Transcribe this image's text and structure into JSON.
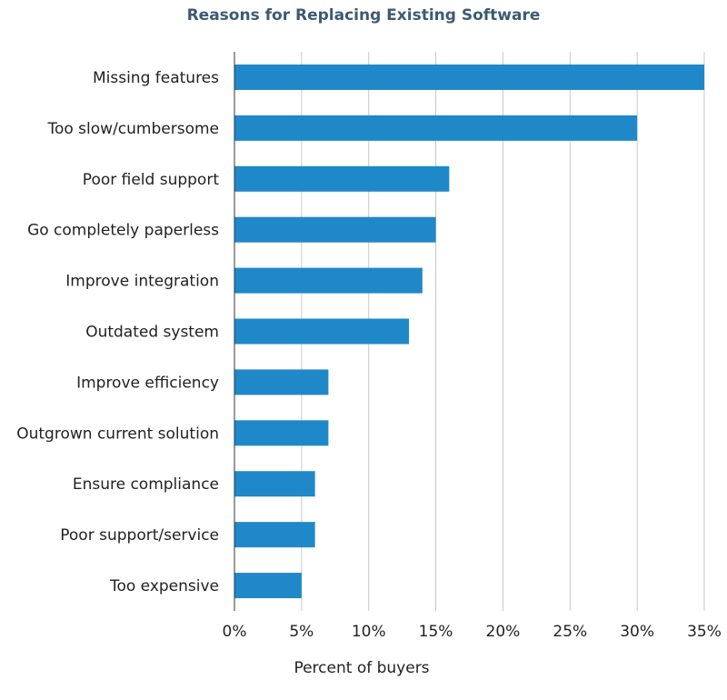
{
  "chart_data": {
    "type": "bar",
    "orientation": "horizontal",
    "title": "Reasons for Replacing Existing Software",
    "xlabel": "Percent of buyers",
    "ylabel": "",
    "categories": [
      "Missing features",
      "Too slow/cumbersome",
      "Poor field support",
      "Go completely paperless",
      "Improve integration",
      "Outdated system",
      "Improve efficiency",
      "Outgrown current solution",
      "Ensure compliance",
      "Poor support/service",
      "Too expensive"
    ],
    "values": [
      35,
      30,
      16,
      15,
      14,
      13,
      7,
      7,
      6,
      6,
      5
    ],
    "xlim": [
      0,
      35
    ],
    "xticks": [
      0,
      5,
      10,
      15,
      20,
      25,
      30,
      35
    ],
    "xtick_labels": [
      "0%",
      "5%",
      "10%",
      "15%",
      "20%",
      "25%",
      "30%",
      "35%"
    ],
    "grid": "vertical",
    "legend": "none",
    "colors": {
      "bar": "#1f88c9",
      "title": "#3d5a73",
      "grid": "#c8c8c8"
    }
  }
}
